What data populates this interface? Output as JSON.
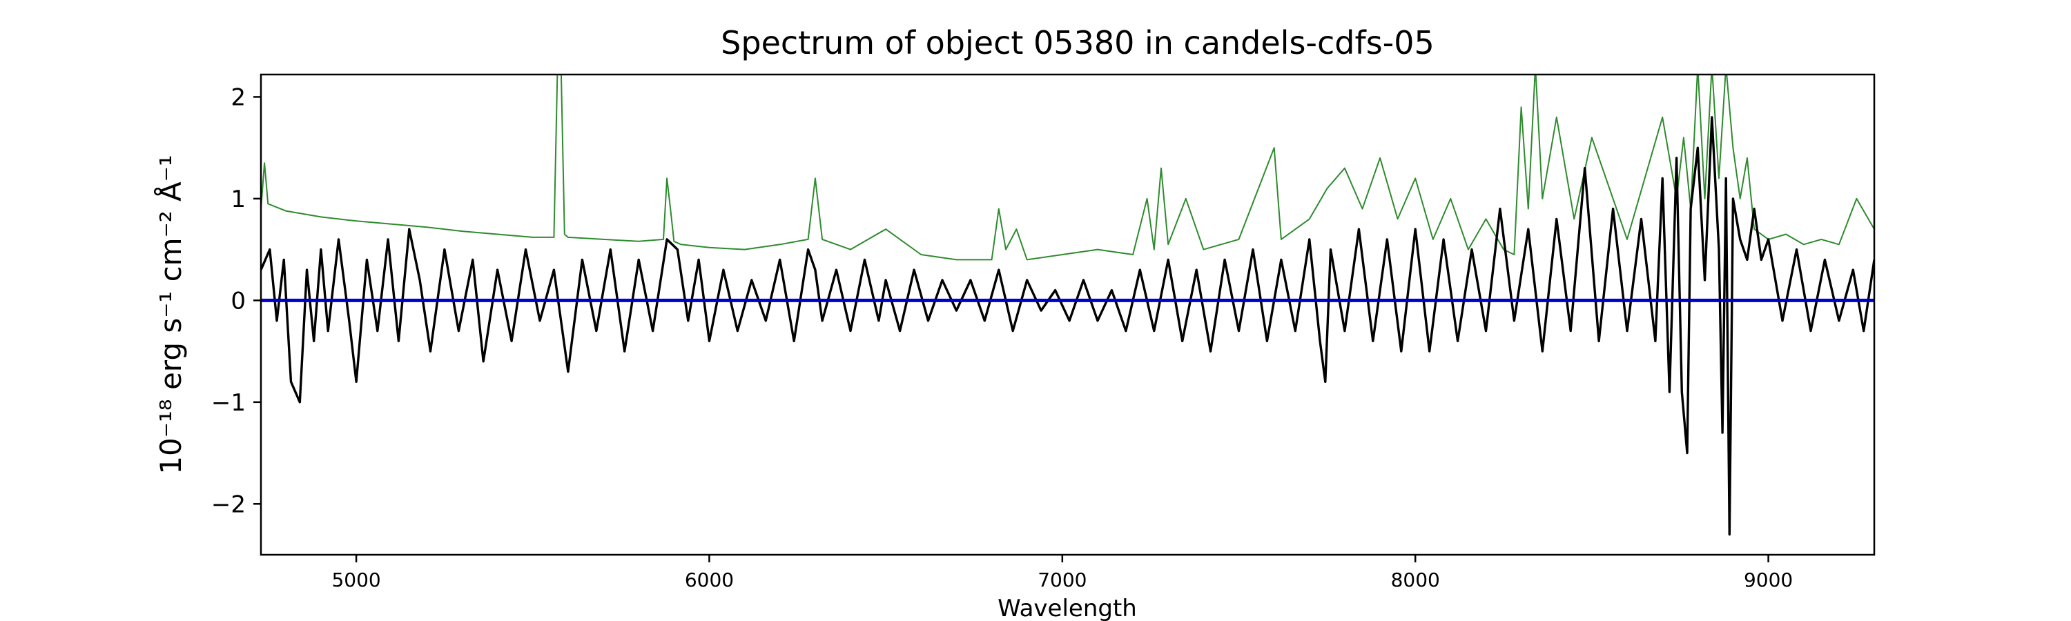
{
  "chart_data": {
    "type": "line",
    "title": "Spectrum of object 05380 in candels-cdfs-05",
    "xlabel": "Wavelength",
    "ylabel": "10⁻¹⁸ erg s⁻¹ cm⁻² Å⁻¹",
    "xlim": [
      4730,
      9300
    ],
    "ylim": [
      -2.5,
      2.22
    ],
    "x_ticks": [
      5000,
      6000,
      7000,
      8000,
      9000
    ],
    "y_ticks": [
      -2,
      -1,
      0,
      1,
      2
    ],
    "grid": false,
    "legend": "none",
    "colors": {
      "flux": "#000000",
      "error": "#2e8b2e",
      "zero": "#0000cc"
    },
    "series": [
      {
        "role": "flux",
        "x": [
          4730,
          4755,
          4775,
          4795,
          4815,
          4840,
          4860,
          4880,
          4900,
          4920,
          4950,
          4980,
          5000,
          5030,
          5060,
          5090,
          5120,
          5150,
          5180,
          5210,
          5250,
          5290,
          5330,
          5360,
          5400,
          5440,
          5480,
          5520,
          5560,
          5600,
          5640,
          5680,
          5720,
          5760,
          5800,
          5840,
          5880,
          5910,
          5940,
          5970,
          6000,
          6040,
          6080,
          6120,
          6160,
          6200,
          6240,
          6280,
          6300,
          6320,
          6360,
          6400,
          6440,
          6480,
          6500,
          6540,
          6580,
          6620,
          6660,
          6700,
          6740,
          6780,
          6820,
          6860,
          6900,
          6940,
          6980,
          7020,
          7060,
          7100,
          7140,
          7180,
          7220,
          7260,
          7300,
          7340,
          7380,
          7420,
          7460,
          7500,
          7540,
          7580,
          7620,
          7660,
          7700,
          7730,
          7745,
          7760,
          7800,
          7840,
          7880,
          7920,
          7960,
          8000,
          8040,
          8080,
          8120,
          8160,
          8200,
          8240,
          8280,
          8320,
          8360,
          8400,
          8440,
          8480,
          8520,
          8560,
          8600,
          8640,
          8680,
          8700,
          8720,
          8740,
          8755,
          8770,
          8780,
          8800,
          8820,
          8840,
          8860,
          8870,
          8880,
          8890,
          8900,
          8920,
          8940,
          8960,
          8980,
          9000,
          9040,
          9080,
          9120,
          9160,
          9200,
          9240,
          9270,
          9300
        ],
        "y": [
          0.3,
          0.5,
          -0.2,
          0.4,
          -0.8,
          -1.0,
          0.3,
          -0.4,
          0.5,
          -0.3,
          0.6,
          -0.2,
          -0.8,
          0.4,
          -0.3,
          0.6,
          -0.4,
          0.7,
          0.2,
          -0.5,
          0.5,
          -0.3,
          0.4,
          -0.6,
          0.3,
          -0.4,
          0.5,
          -0.2,
          0.3,
          -0.7,
          0.4,
          -0.3,
          0.5,
          -0.5,
          0.4,
          -0.3,
          0.6,
          0.5,
          -0.2,
          0.4,
          -0.4,
          0.3,
          -0.3,
          0.2,
          -0.2,
          0.4,
          -0.4,
          0.5,
          0.3,
          -0.2,
          0.3,
          -0.3,
          0.4,
          -0.2,
          0.2,
          -0.3,
          0.3,
          -0.2,
          0.2,
          -0.1,
          0.2,
          -0.2,
          0.3,
          -0.3,
          0.2,
          -0.1,
          0.1,
          -0.2,
          0.2,
          -0.2,
          0.1,
          -0.3,
          0.3,
          -0.3,
          0.4,
          -0.4,
          0.3,
          -0.5,
          0.4,
          -0.3,
          0.5,
          -0.4,
          0.4,
          -0.3,
          0.6,
          -0.4,
          -0.8,
          0.5,
          -0.3,
          0.7,
          -0.4,
          0.6,
          -0.5,
          0.7,
          -0.5,
          0.6,
          -0.4,
          0.5,
          -0.3,
          0.9,
          -0.2,
          0.7,
          -0.5,
          0.8,
          -0.3,
          1.3,
          -0.4,
          0.9,
          -0.3,
          0.8,
          -0.4,
          1.2,
          -0.9,
          1.4,
          -0.9,
          -1.5,
          0.9,
          1.5,
          0.2,
          1.8,
          0.5,
          -1.3,
          1.2,
          -2.3,
          1.0,
          0.6,
          0.4,
          0.9,
          0.4,
          0.6,
          -0.2,
          0.5,
          -0.3,
          0.4,
          -0.2,
          0.3,
          -0.3,
          0.4
        ]
      },
      {
        "role": "error",
        "x": [
          4730,
          4740,
          4750,
          4800,
          4900,
          5000,
          5100,
          5200,
          5300,
          5400,
          5500,
          5560,
          5570,
          5580,
          5590,
          5600,
          5700,
          5800,
          5870,
          5880,
          5890,
          5900,
          5920,
          6000,
          6100,
          6200,
          6280,
          6300,
          6320,
          6400,
          6500,
          6600,
          6700,
          6800,
          6820,
          6840,
          6870,
          6900,
          7000,
          7100,
          7200,
          7240,
          7260,
          7280,
          7300,
          7350,
          7400,
          7500,
          7600,
          7620,
          7700,
          7750,
          7800,
          7850,
          7900,
          7950,
          8000,
          8050,
          8100,
          8150,
          8200,
          8250,
          8280,
          8300,
          8320,
          8340,
          8360,
          8400,
          8450,
          8500,
          8600,
          8700,
          8740,
          8760,
          8780,
          8800,
          8820,
          8840,
          8860,
          8880,
          8900,
          8920,
          8940,
          8960,
          9000,
          9050,
          9100,
          9150,
          9200,
          9250,
          9300
        ],
        "y": [
          0.9,
          1.35,
          0.95,
          0.88,
          0.82,
          0.78,
          0.75,
          0.72,
          0.68,
          0.65,
          0.62,
          0.62,
          2.3,
          2.3,
          0.65,
          0.62,
          0.6,
          0.58,
          0.6,
          1.2,
          0.9,
          0.58,
          0.55,
          0.52,
          0.5,
          0.55,
          0.6,
          1.2,
          0.6,
          0.5,
          0.7,
          0.45,
          0.4,
          0.4,
          0.9,
          0.5,
          0.7,
          0.4,
          0.45,
          0.5,
          0.45,
          1.0,
          0.5,
          1.3,
          0.55,
          1.0,
          0.5,
          0.6,
          1.5,
          0.6,
          0.8,
          1.1,
          1.3,
          0.9,
          1.4,
          0.8,
          1.2,
          0.6,
          1.0,
          0.5,
          0.8,
          0.5,
          0.45,
          1.9,
          0.9,
          2.3,
          1.0,
          1.8,
          0.8,
          1.6,
          0.6,
          1.8,
          1.0,
          1.6,
          0.9,
          2.3,
          1.0,
          2.3,
          1.2,
          2.3,
          1.5,
          1.0,
          1.4,
          0.7,
          0.6,
          0.65,
          0.55,
          0.6,
          0.55,
          1.0,
          0.7
        ]
      },
      {
        "role": "zero",
        "x": [
          4730,
          9300
        ],
        "y": [
          0,
          0
        ]
      }
    ]
  }
}
